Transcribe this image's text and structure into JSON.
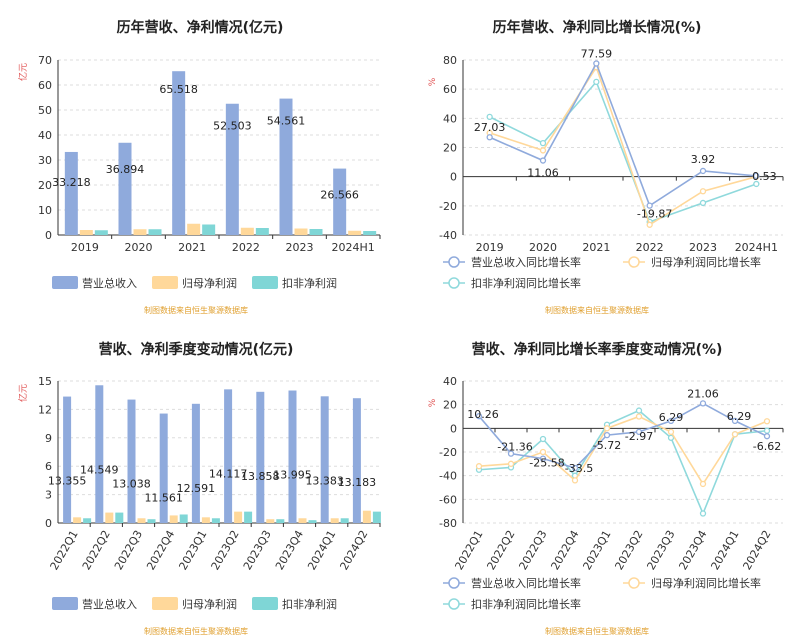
{
  "source_note": "制图数据来自恒生聚源数据库",
  "colors": {
    "revenue": "#8faadc",
    "net_profit": "#ffd89a",
    "deducted": "#7fd6d6",
    "growth_revenue": "#8faadc",
    "growth_net": "#ffd89a",
    "growth_deducted": "#8fd9dc"
  },
  "chart_data": [
    {
      "type": "bar",
      "title": "历年营收、净利情况(亿元)",
      "unit": "亿元",
      "ylim": [
        0,
        70
      ],
      "yticks": [
        0,
        10,
        20,
        30,
        40,
        50,
        60,
        70
      ],
      "categories": [
        "2019",
        "2020",
        "2021",
        "2022",
        "2023",
        "2024H1"
      ],
      "series": [
        {
          "name": "营业总收入",
          "values": [
            33.218,
            36.894,
            65.518,
            52.503,
            54.561,
            26.566
          ],
          "labels": [
            "33.218",
            "36.894",
            "65.518",
            "52.503",
            "54.561",
            "26.566"
          ]
        },
        {
          "name": "归母净利润",
          "values": [
            2.0,
            2.3,
            4.5,
            2.9,
            2.6,
            1.7
          ]
        },
        {
          "name": "扣非净利润",
          "values": [
            1.9,
            2.3,
            4.2,
            2.8,
            2.4,
            1.6
          ]
        }
      ]
    },
    {
      "type": "line",
      "title": "历年营收、净利同比增长情况(%)",
      "unit": "%",
      "ylim": [
        -40,
        80
      ],
      "yticks": [
        -40,
        -20,
        0,
        20,
        40,
        60,
        80
      ],
      "categories": [
        "2019",
        "2020",
        "2021",
        "2022",
        "2023",
        "2024H1"
      ],
      "series": [
        {
          "name": "营业总收入同比增长率",
          "values": [
            27.03,
            11.06,
            77.59,
            -19.87,
            3.92,
            0.53
          ],
          "labels": [
            "27.03",
            "11.06",
            "77.59",
            "-19.87",
            "3.92",
            "0.53"
          ]
        },
        {
          "name": "归母净利润同比增长率",
          "values": [
            30,
            18,
            75,
            -33,
            -10,
            0
          ]
        },
        {
          "name": "扣非净利润同比增长率",
          "values": [
            41,
            23,
            65,
            -31,
            -18,
            -5
          ]
        }
      ]
    },
    {
      "type": "bar",
      "title": "营收、净利季度变动情况(亿元)",
      "unit": "亿元",
      "ylim": [
        0,
        15
      ],
      "yticks": [
        0,
        3,
        6,
        9,
        12,
        15
      ],
      "categories": [
        "2022Q1",
        "2022Q2",
        "2022Q3",
        "2022Q4",
        "2023Q1",
        "2023Q2",
        "2023Q3",
        "2023Q4",
        "2024Q1",
        "2024Q2"
      ],
      "series": [
        {
          "name": "营业总收入",
          "values": [
            13.355,
            14.549,
            13.038,
            11.561,
            12.591,
            14.117,
            13.858,
            13.995,
            13.383,
            13.183
          ],
          "labels": [
            "13.355",
            "14.549",
            "13.038",
            "11.561",
            "12.591",
            "14.117",
            "13.858",
            "13.995",
            "13.383",
            "13.183"
          ]
        },
        {
          "name": "归母净利润",
          "values": [
            0.6,
            1.1,
            0.5,
            0.8,
            0.6,
            1.2,
            0.4,
            0.5,
            0.5,
            1.3
          ]
        },
        {
          "name": "扣非净利润",
          "values": [
            0.5,
            1.1,
            0.4,
            0.9,
            0.5,
            1.2,
            0.4,
            0.3,
            0.5,
            1.2
          ]
        }
      ]
    },
    {
      "type": "line",
      "title": "营收、净利同比增长率季度变动情况(%)",
      "unit": "%",
      "ylim": [
        -80,
        40
      ],
      "yticks": [
        -80,
        -60,
        -40,
        -20,
        0,
        20,
        40
      ],
      "categories": [
        "2022Q1",
        "2022Q2",
        "2022Q3",
        "2022Q4",
        "2023Q1",
        "2023Q2",
        "2023Q3",
        "2023Q4",
        "2024Q1",
        "2024Q2"
      ],
      "series": [
        {
          "name": "营业总收入同比增长率",
          "values": [
            10.26,
            -21.36,
            -25.58,
            -33.5,
            -5.72,
            -2.97,
            6.29,
            21.06,
            6.29,
            -6.62
          ],
          "labels": [
            "10.26",
            "-21.36",
            "-25.58",
            "-33.5",
            "-5.72",
            "-2.97",
            "6.29",
            "21.06",
            "6.29",
            "-6.62"
          ]
        },
        {
          "name": "归母净利润同比增长率",
          "values": [
            -32,
            -30,
            -20,
            -44,
            0,
            10,
            -3,
            -47,
            -5,
            6
          ]
        },
        {
          "name": "扣非净利润同比增长率",
          "values": [
            -35,
            -33,
            -9,
            -40,
            3,
            15,
            -8,
            -72,
            -5,
            -2
          ]
        }
      ]
    }
  ]
}
